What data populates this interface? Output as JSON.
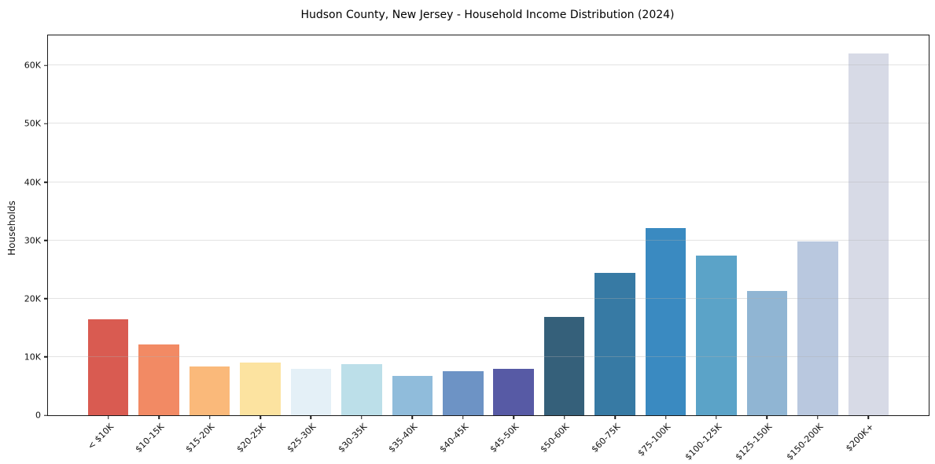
{
  "chart_data": {
    "type": "bar",
    "title": "Hudson County, New Jersey - Household Income Distribution (2024)",
    "xlabel": "",
    "ylabel": "Households",
    "categories": [
      "< $10K",
      "$10-15K",
      "$15-20K",
      "$20-25K",
      "$25-30K",
      "$30-35K",
      "$35-40K",
      "$40-45K",
      "$45-50K",
      "$50-60K",
      "$60-75K",
      "$75-100K",
      "$100-125K",
      "$125-150K",
      "$150-200K",
      "$200K+"
    ],
    "values": [
      16500,
      12200,
      8400,
      9050,
      8000,
      8750,
      6750,
      7500,
      7900,
      16800,
      24400,
      32150,
      27450,
      21350,
      29750,
      62000
    ],
    "bar_colors": [
      "#d95b51",
      "#f28a64",
      "#fab97a",
      "#fce3a0",
      "#e4f0f7",
      "#bcdfe9",
      "#90bcdb",
      "#6d93c5",
      "#575aa5",
      "#35607a",
      "#377aa4",
      "#3a8ac1",
      "#5ba3c8",
      "#90b5d3",
      "#b9c8df",
      "#d7dae6"
    ],
    "ylim": [
      0,
      65160
    ],
    "yticks": {
      "values": [
        0,
        10000,
        20000,
        30000,
        40000,
        50000,
        60000
      ],
      "labels": [
        "0",
        "10K",
        "20K",
        "30K",
        "40K",
        "50K",
        "60K"
      ]
    },
    "grid": "horizontal-only",
    "legend": "none",
    "bar_width_fraction": 0.8
  },
  "colors": {
    "background": "#ffffff",
    "spine": "#1a1a1a",
    "gridline": "#eaeaea",
    "text": "#111111"
  }
}
